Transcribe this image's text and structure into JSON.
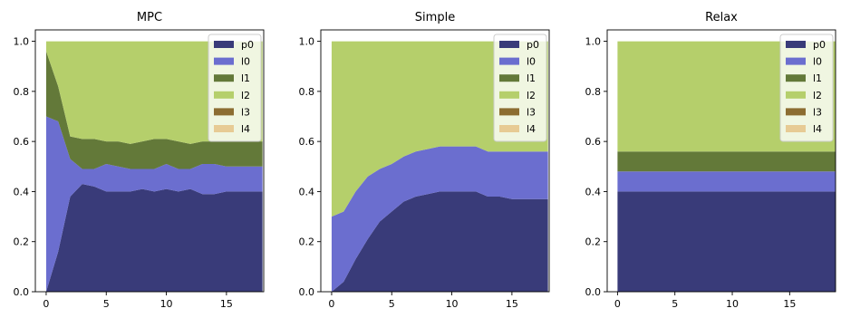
{
  "chart_data": [
    {
      "type": "area",
      "title": "MPC",
      "x": [
        0,
        1,
        2,
        3,
        4,
        5,
        6,
        7,
        8,
        9,
        10,
        11,
        12,
        13,
        14,
        15,
        16,
        17,
        18
      ],
      "ylim": [
        0,
        1.0
      ],
      "xlim": [
        -0.9,
        18.1
      ],
      "xticks": [
        0,
        5,
        10,
        15
      ],
      "yticks": [
        0.0,
        0.2,
        0.4,
        0.6,
        0.8,
        1.0
      ],
      "legend_position": "upper right",
      "series": [
        {
          "name": "p0",
          "color": "#393b79",
          "values": [
            0.0,
            0.16,
            0.38,
            0.43,
            0.42,
            0.4,
            0.4,
            0.4,
            0.41,
            0.4,
            0.41,
            0.4,
            0.41,
            0.39,
            0.39,
            0.4,
            0.4,
            0.4,
            0.4
          ]
        },
        {
          "name": "l0",
          "color": "#6b6ecf",
          "values": [
            0.7,
            0.52,
            0.15,
            0.06,
            0.07,
            0.11,
            0.1,
            0.09,
            0.08,
            0.09,
            0.1,
            0.09,
            0.08,
            0.12,
            0.12,
            0.1,
            0.1,
            0.1,
            0.1
          ]
        },
        {
          "name": "l1",
          "color": "#637939",
          "values": [
            0.26,
            0.14,
            0.09,
            0.12,
            0.12,
            0.09,
            0.1,
            0.1,
            0.11,
            0.12,
            0.1,
            0.11,
            0.1,
            0.09,
            0.09,
            0.1,
            0.1,
            0.1,
            0.1
          ]
        },
        {
          "name": "l2",
          "color": "#b5cf6b",
          "values": [
            0.04,
            0.18,
            0.38,
            0.39,
            0.39,
            0.4,
            0.4,
            0.41,
            0.4,
            0.39,
            0.39,
            0.4,
            0.41,
            0.4,
            0.4,
            0.4,
            0.4,
            0.4,
            0.4
          ]
        },
        {
          "name": "l3",
          "color": "#8c6d31",
          "values": [
            0,
            0,
            0,
            0,
            0,
            0,
            0,
            0,
            0,
            0,
            0,
            0,
            0,
            0,
            0,
            0,
            0,
            0,
            0
          ]
        },
        {
          "name": "l4",
          "color": "#e7cb94",
          "values": [
            0,
            0,
            0,
            0,
            0,
            0,
            0,
            0,
            0,
            0,
            0,
            0,
            0,
            0,
            0,
            0,
            0,
            0,
            0
          ]
        }
      ]
    },
    {
      "type": "area",
      "title": "Simple",
      "x": [
        0,
        1,
        2,
        3,
        4,
        5,
        6,
        7,
        8,
        9,
        10,
        11,
        12,
        13,
        14,
        15,
        16,
        17,
        18
      ],
      "ylim": [
        0,
        1.0
      ],
      "xlim": [
        -0.9,
        18.1
      ],
      "xticks": [
        0,
        5,
        10,
        15
      ],
      "yticks": [
        0.0,
        0.2,
        0.4,
        0.6,
        0.8,
        1.0
      ],
      "legend_position": "upper right",
      "series": [
        {
          "name": "p0",
          "color": "#393b79",
          "values": [
            0.0,
            0.04,
            0.13,
            0.21,
            0.28,
            0.32,
            0.36,
            0.38,
            0.39,
            0.4,
            0.4,
            0.4,
            0.4,
            0.38,
            0.38,
            0.37,
            0.37,
            0.37,
            0.37
          ]
        },
        {
          "name": "l0",
          "color": "#6b6ecf",
          "values": [
            0.3,
            0.28,
            0.27,
            0.25,
            0.21,
            0.19,
            0.18,
            0.18,
            0.18,
            0.18,
            0.18,
            0.18,
            0.18,
            0.18,
            0.18,
            0.19,
            0.19,
            0.19,
            0.19
          ]
        },
        {
          "name": "l1",
          "color": "#637939",
          "values": [
            0,
            0,
            0,
            0,
            0,
            0,
            0,
            0,
            0,
            0,
            0,
            0,
            0,
            0,
            0,
            0,
            0,
            0,
            0
          ]
        },
        {
          "name": "l2",
          "color": "#b5cf6b",
          "values": [
            0.7,
            0.68,
            0.6,
            0.54,
            0.51,
            0.49,
            0.46,
            0.44,
            0.43,
            0.42,
            0.42,
            0.42,
            0.42,
            0.44,
            0.44,
            0.44,
            0.44,
            0.44,
            0.44
          ]
        },
        {
          "name": "l3",
          "color": "#8c6d31",
          "values": [
            0,
            0,
            0,
            0,
            0,
            0,
            0,
            0,
            0,
            0,
            0,
            0,
            0,
            0,
            0,
            0,
            0,
            0,
            0
          ]
        },
        {
          "name": "l4",
          "color": "#e7cb94",
          "values": [
            0,
            0,
            0,
            0,
            0,
            0,
            0,
            0,
            0,
            0,
            0,
            0,
            0,
            0,
            0,
            0,
            0,
            0,
            0
          ]
        }
      ]
    },
    {
      "type": "area",
      "title": "Relax",
      "x": [
        0,
        1,
        2,
        3,
        4,
        5,
        6,
        7,
        8,
        9,
        10,
        11,
        12,
        13,
        14,
        15,
        16,
        17,
        18,
        19
      ],
      "ylim": [
        0,
        1.0
      ],
      "xlim": [
        -0.9,
        19.0
      ],
      "xticks": [
        0,
        5,
        10,
        15
      ],
      "yticks": [
        0.0,
        0.2,
        0.4,
        0.6,
        0.8,
        1.0
      ],
      "legend_position": "upper right",
      "series": [
        {
          "name": "p0",
          "color": "#393b79",
          "values": [
            0.4,
            0.4,
            0.4,
            0.4,
            0.4,
            0.4,
            0.4,
            0.4,
            0.4,
            0.4,
            0.4,
            0.4,
            0.4,
            0.4,
            0.4,
            0.4,
            0.4,
            0.4,
            0.4,
            0.4
          ]
        },
        {
          "name": "l0",
          "color": "#6b6ecf",
          "values": [
            0.08,
            0.08,
            0.08,
            0.08,
            0.08,
            0.08,
            0.08,
            0.08,
            0.08,
            0.08,
            0.08,
            0.08,
            0.08,
            0.08,
            0.08,
            0.08,
            0.08,
            0.08,
            0.08,
            0.08
          ]
        },
        {
          "name": "l1",
          "color": "#637939",
          "values": [
            0.08,
            0.08,
            0.08,
            0.08,
            0.08,
            0.08,
            0.08,
            0.08,
            0.08,
            0.08,
            0.08,
            0.08,
            0.08,
            0.08,
            0.08,
            0.08,
            0.08,
            0.08,
            0.08,
            0.08
          ]
        },
        {
          "name": "l2",
          "color": "#b5cf6b",
          "values": [
            0.44,
            0.44,
            0.44,
            0.44,
            0.44,
            0.44,
            0.44,
            0.44,
            0.44,
            0.44,
            0.44,
            0.44,
            0.44,
            0.44,
            0.44,
            0.44,
            0.44,
            0.44,
            0.44,
            0.44
          ]
        },
        {
          "name": "l3",
          "color": "#8c6d31",
          "values": [
            0,
            0,
            0,
            0,
            0,
            0,
            0,
            0,
            0,
            0,
            0,
            0,
            0,
            0,
            0,
            0,
            0,
            0,
            0,
            0
          ]
        },
        {
          "name": "l4",
          "color": "#e7cb94",
          "values": [
            0,
            0,
            0,
            0,
            0,
            0,
            0,
            0,
            0,
            0,
            0,
            0,
            0,
            0,
            0,
            0,
            0,
            0,
            0,
            0
          ]
        }
      ]
    }
  ]
}
